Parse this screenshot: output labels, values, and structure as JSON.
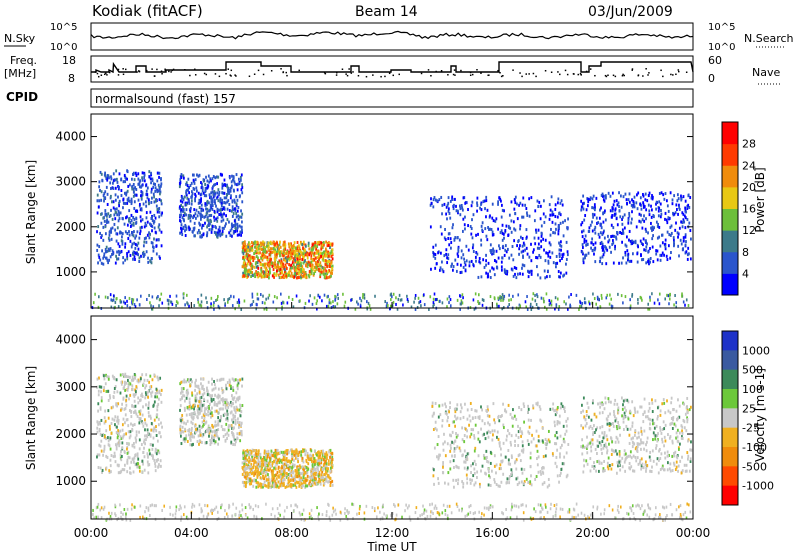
{
  "header": {
    "station": "Kodiak (fitACF)",
    "beam": "Beam 14",
    "date": "03/Jun/2009"
  },
  "noise_panel": {
    "left_label": "N.Sky",
    "left_ticks": [
      "10^5",
      "10^0"
    ],
    "right_ticks": [
      "10^5",
      "10^0"
    ],
    "right_label": "N.Search"
  },
  "freq_panel": {
    "left_label_1": "Freq.",
    "left_label_2": "[MHz]",
    "left_ticks": [
      "18",
      "8"
    ],
    "right_ticks": [
      "60",
      "0"
    ],
    "right_label": "Nave"
  },
  "cpid": {
    "label": "CPID",
    "value": "normalsound (fast) 157"
  },
  "chart_data": [
    {
      "type": "heatmap",
      "panel": "power",
      "ylabel": "Slant Range [km]",
      "xlabel": "Time UT",
      "x_ticks": [
        "00:00",
        "04:00",
        "08:00",
        "12:00",
        "16:00",
        "20:00",
        "00:00"
      ],
      "y_ticks": [
        "1000",
        "2000",
        "3000",
        "4000"
      ],
      "ylim": [
        200,
        4500
      ],
      "colorbar": {
        "label": "Power [dB]",
        "ticks": [
          "4",
          "8",
          "12",
          "16",
          "20",
          "24",
          "28"
        ],
        "colors": [
          "#0000ff",
          "#2a55cc",
          "#3c7a8a",
          "#6cbf3a",
          "#e8c814",
          "#f08c0c",
          "#ff3a00",
          "#ff0000"
        ]
      },
      "features": [
        {
          "name": "strong-echo-region",
          "time_start": 6.0,
          "time_end": 9.6,
          "range_start": 900,
          "range_end": 1700,
          "power_db": 28
        },
        {
          "name": "band-early",
          "time_start": 0.2,
          "time_end": 2.8,
          "range_start": 1200,
          "range_end": 3300,
          "power_db": 10
        },
        {
          "name": "band-morning",
          "time_start": 3.5,
          "time_end": 6.0,
          "range_start": 1800,
          "range_end": 3200,
          "power_db": 10
        },
        {
          "name": "band-afternoon",
          "time_start": 13.5,
          "time_end": 19.0,
          "range_start": 900,
          "range_end": 2700,
          "power_db": 8
        },
        {
          "name": "band-evening",
          "time_start": 19.5,
          "time_end": 23.9,
          "range_start": 1200,
          "range_end": 2800,
          "power_db": 8
        }
      ]
    },
    {
      "type": "heatmap",
      "panel": "velocity",
      "ylabel": "Slant Range [km]",
      "xlabel": "Time UT",
      "x_ticks": [
        "00:00",
        "04:00",
        "08:00",
        "12:00",
        "16:00",
        "20:00",
        "00:00"
      ],
      "y_ticks": [
        "1000",
        "2000",
        "3000",
        "4000"
      ],
      "ylim": [
        200,
        4500
      ],
      "colorbar": {
        "label": "Velocity [m s-1]",
        "ticks": [
          "1000",
          "500",
          "100",
          "25",
          "-25",
          "-100",
          "-500",
          "-1000"
        ],
        "colors": [
          "#1e32c8",
          "#3a5aa0",
          "#3c8a5a",
          "#6cc83a",
          "#c8c8c8",
          "#f0b020",
          "#f08c0c",
          "#ff4a00",
          "#ff0000"
        ]
      }
    }
  ]
}
